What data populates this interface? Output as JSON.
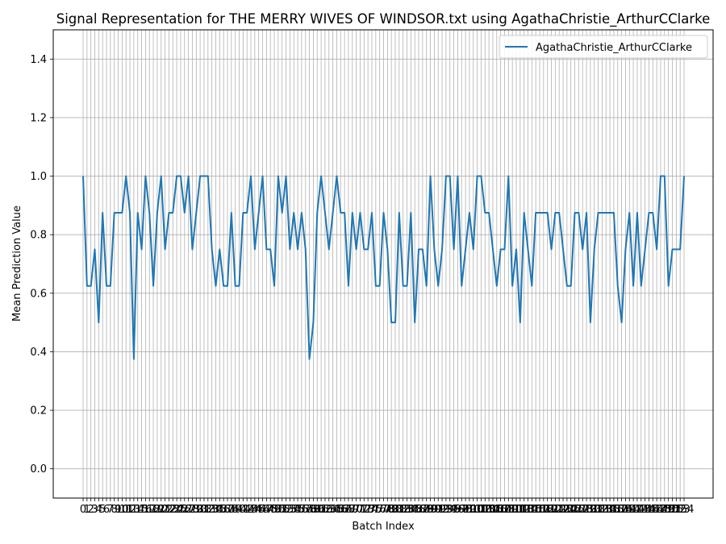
{
  "chart_data": {
    "type": "line",
    "title": "Signal Representation for THE MERRY WIVES OF WINDSOR.txt using AgathaChristie_ArthurCClarke",
    "xlabel": "Batch Index",
    "ylabel": "Mean Prediction Value",
    "ylim": [
      -0.1,
      1.5
    ],
    "yticks": [
      0.0,
      0.2,
      0.4,
      0.6,
      0.8,
      1.0,
      1.2,
      1.4
    ],
    "grid": true,
    "legend_position": "top-right",
    "series": [
      {
        "name": "AgathaChristie_ArthurCClarke",
        "color": "#1f77b4",
        "values": [
          1.0,
          0.625,
          0.625,
          0.75,
          0.5,
          0.875,
          0.625,
          0.625,
          0.875,
          0.875,
          0.875,
          1.0,
          0.875,
          0.375,
          0.875,
          0.75,
          1.0,
          0.875,
          0.625,
          0.875,
          1.0,
          0.75,
          0.875,
          0.875,
          1.0,
          1.0,
          0.875,
          1.0,
          0.75,
          0.875,
          1.0,
          1.0,
          1.0,
          0.75,
          0.625,
          0.75,
          0.625,
          0.625,
          0.875,
          0.625,
          0.625,
          0.875,
          0.875,
          1.0,
          0.75,
          0.875,
          1.0,
          0.75,
          0.75,
          0.625,
          1.0,
          0.875,
          1.0,
          0.75,
          0.875,
          0.75,
          0.875,
          0.75,
          0.375,
          0.5,
          0.875,
          1.0,
          0.875,
          0.75,
          0.875,
          1.0,
          0.875,
          0.875,
          0.625,
          0.875,
          0.75,
          0.875,
          0.75,
          0.75,
          0.875,
          0.625,
          0.625,
          0.875,
          0.75,
          0.5,
          0.5,
          0.875,
          0.625,
          0.625,
          0.875,
          0.5,
          0.75,
          0.75,
          0.625,
          1.0,
          0.75,
          0.625,
          0.75,
          1.0,
          1.0,
          0.75,
          1.0,
          0.625,
          0.75,
          0.875,
          0.75,
          1.0,
          1.0,
          0.875,
          0.875,
          0.75,
          0.625,
          0.75,
          0.75,
          1.0,
          0.625,
          0.75,
          0.5,
          0.875,
          0.75,
          0.625,
          0.875,
          0.875,
          0.875,
          0.875,
          0.75,
          0.875,
          0.875,
          0.75,
          0.625,
          0.625,
          0.875,
          0.875,
          0.75,
          0.875,
          0.5,
          0.75,
          0.875,
          0.875,
          0.875,
          0.875,
          0.875,
          0.625,
          0.5,
          0.75,
          0.875,
          0.625,
          0.875,
          0.625,
          0.75,
          0.875,
          0.875,
          0.75,
          1.0,
          1.0,
          0.625,
          0.75,
          0.75,
          0.75,
          1.0
        ]
      }
    ]
  }
}
